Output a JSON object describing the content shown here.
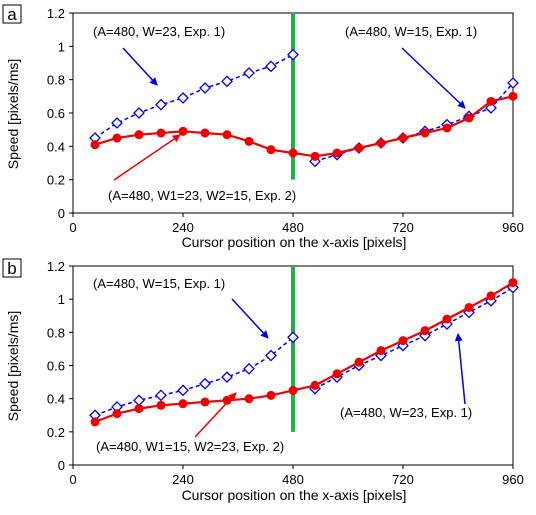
{
  "chart_data": [
    {
      "panel_label": "a",
      "type": "line",
      "xlabel": "Cursor position on the x-axis [pixels]",
      "ylabel": "Speed [pixels/ms]",
      "xlim": [
        0,
        960
      ],
      "ylim": [
        0,
        1.2
      ],
      "xticks": [
        0,
        240,
        480,
        720,
        960
      ],
      "yticks": [
        0,
        0.2,
        0.4,
        0.6,
        0.8,
        1,
        1.2
      ],
      "xtick_labels": [
        "0",
        "240",
        "480",
        "720",
        "960"
      ],
      "ytick_labels": [
        "0",
        "0.2",
        "0.4",
        "0.6",
        "0.8",
        "1",
        "1.2"
      ],
      "vertical_line_x": 480,
      "vertical_line_color": "#1db34a",
      "series": [
        {
          "style": "blue-dashed-open-diamond",
          "color": "#0000ee",
          "x": [
            48,
            96,
            144,
            192,
            240,
            288,
            336,
            384,
            432,
            480
          ],
          "y": [
            0.45,
            0.54,
            0.6,
            0.65,
            0.69,
            0.75,
            0.79,
            0.84,
            0.88,
            0.95
          ]
        },
        {
          "style": "blue-dashed-open-diamond",
          "color": "#0000ee",
          "x": [
            528,
            576,
            624,
            672,
            720,
            768,
            816,
            864,
            912,
            960
          ],
          "y": [
            0.31,
            0.35,
            0.39,
            0.42,
            0.45,
            0.49,
            0.53,
            0.58,
            0.63,
            0.78
          ]
        },
        {
          "style": "red-solid-filled-circle",
          "color": "#ee0000",
          "x": [
            48,
            96,
            144,
            192,
            240,
            288,
            336,
            384,
            432,
            480,
            528,
            576,
            624,
            672,
            720,
            768,
            816,
            864,
            912,
            960
          ],
          "y": [
            0.41,
            0.45,
            0.47,
            0.48,
            0.49,
            0.48,
            0.47,
            0.43,
            0.38,
            0.36,
            0.34,
            0.36,
            0.39,
            0.42,
            0.45,
            0.48,
            0.51,
            0.57,
            0.67,
            0.7
          ]
        }
      ],
      "annotations": [
        {
          "text": "(A=480, W=23, Exp. 1)",
          "arrow_color": "#0000ee"
        },
        {
          "text": "(A=480, W=15, Exp. 1)",
          "arrow_color": "#0000ee"
        },
        {
          "text": "(A=480, W1=23, W2=15, Exp. 2)",
          "arrow_color": "#ee0000"
        }
      ]
    },
    {
      "panel_label": "b",
      "type": "line",
      "xlabel": "Cursor position on the x-axis [pixels]",
      "ylabel": "Speed [pixels/ms]",
      "xlim": [
        0,
        960
      ],
      "ylim": [
        0,
        1.2
      ],
      "xticks": [
        0,
        240,
        480,
        720,
        960
      ],
      "yticks": [
        0,
        0.2,
        0.4,
        0.6,
        0.8,
        1,
        1.2
      ],
      "xtick_labels": [
        "0",
        "240",
        "480",
        "720",
        "960"
      ],
      "ytick_labels": [
        "0",
        "0.2",
        "0.4",
        "0.6",
        "0.8",
        "1",
        "1.2"
      ],
      "vertical_line_x": 480,
      "vertical_line_color": "#1db34a",
      "series": [
        {
          "style": "blue-dashed-open-diamond",
          "color": "#0000ee",
          "x": [
            48,
            96,
            144,
            192,
            240,
            288,
            336,
            384,
            432,
            480
          ],
          "y": [
            0.3,
            0.35,
            0.39,
            0.42,
            0.45,
            0.49,
            0.53,
            0.58,
            0.66,
            0.77
          ]
        },
        {
          "style": "blue-dashed-open-diamond",
          "color": "#0000ee",
          "x": [
            528,
            576,
            624,
            672,
            720,
            768,
            816,
            864,
            912,
            960
          ],
          "y": [
            0.46,
            0.53,
            0.6,
            0.66,
            0.72,
            0.78,
            0.85,
            0.92,
            0.99,
            1.07
          ]
        },
        {
          "style": "red-solid-filled-circle",
          "color": "#ee0000",
          "x": [
            48,
            96,
            144,
            192,
            240,
            288,
            336,
            384,
            432,
            480,
            528,
            576,
            624,
            672,
            720,
            768,
            816,
            864,
            912,
            960
          ],
          "y": [
            0.26,
            0.31,
            0.34,
            0.36,
            0.37,
            0.38,
            0.39,
            0.4,
            0.42,
            0.45,
            0.48,
            0.55,
            0.62,
            0.69,
            0.75,
            0.81,
            0.88,
            0.95,
            1.02,
            1.1
          ]
        }
      ],
      "annotations": [
        {
          "text": "(A=480, W=15, Exp. 1)",
          "arrow_color": "#0000ee"
        },
        {
          "text": "(A=480, W=23, Exp. 1)",
          "arrow_color": "#0000ee"
        },
        {
          "text": "(A=480, W1=15, W2=23, Exp. 2)",
          "arrow_color": "#ee0000"
        }
      ]
    }
  ]
}
